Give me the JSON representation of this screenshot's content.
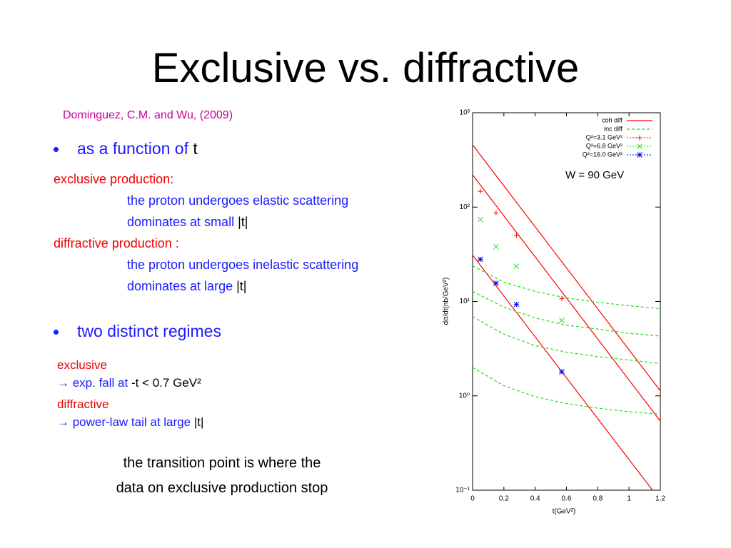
{
  "title": "Exclusive vs. diffractive",
  "citation": "Dominguez, C.M. and Wu, (2009)",
  "bullet1": {
    "text": "as a function of",
    "symbol": "t"
  },
  "exclusive_block": {
    "label": "exclusive production:",
    "line1": "the proton undergoes elastic scattering",
    "line2": "dominates at small",
    "symbol": "|t|"
  },
  "diffractive_block": {
    "label": "diffractive production :",
    "line1": "the proton undergoes inelastic scattering",
    "line2": "dominates at large",
    "symbol": "|t|"
  },
  "bullet2": "two distinct regimes",
  "regimes": {
    "exclusive": "exclusive",
    "exclusive_note": "→ exp. fall at",
    "exclusive_cut": "-t < 0.7 GeV²",
    "diffractive": "diffractive",
    "diffractive_note": "→ power-law tail at large",
    "diffractive_symbol": "|t|"
  },
  "conclusion": [
    "the transition point is where the",
    "data on exclusive production stop"
  ],
  "chart_data": {
    "type": "line",
    "yscale": "log",
    "xlabel": "t(GeV²)",
    "ylabel": "dσ/dt(nb/GeV²)",
    "annotation": "W = 90 GeV",
    "xlim": [
      0,
      1.2
    ],
    "xticks": [
      0,
      0.2,
      0.4,
      0.6,
      0.8,
      1,
      1.2
    ],
    "ylim": [
      0.1,
      1000
    ],
    "yticks": [
      {
        "value": 0.1,
        "label": "10⁻¹"
      },
      {
        "value": 1,
        "label": "10⁰"
      },
      {
        "value": 10,
        "label": "10¹"
      },
      {
        "value": 100,
        "label": "10²"
      },
      {
        "value": 1000,
        "label": "10³"
      }
    ],
    "series": [
      {
        "name": "coh diff",
        "color": "#ff0000",
        "style": "solid",
        "x": [
          0,
          1.2
        ],
        "values": [
          457,
          1.13
        ]
      },
      {
        "color": "#ff0000",
        "style": "solid",
        "x": [
          0,
          1.2
        ],
        "values": [
          220,
          0.54
        ]
      },
      {
        "color": "#ff0000",
        "style": "solid",
        "x": [
          0,
          1.15
        ],
        "values": [
          31,
          0.1
        ]
      },
      {
        "name": "inc diff",
        "color": "#22dd22",
        "style": "dashed",
        "x": [
          0,
          0.2,
          0.4,
          0.6,
          0.8,
          1,
          1.2
        ],
        "values": [
          23.9,
          16.0,
          12.8,
          10.9,
          9.8,
          9.0,
          8.4
        ]
      },
      {
        "color": "#22dd22",
        "style": "dashed",
        "x": [
          0,
          0.2,
          0.4,
          0.6,
          0.8,
          1,
          1.2
        ],
        "values": [
          12.8,
          8.7,
          6.7,
          5.6,
          5.1,
          4.6,
          4.3
        ]
      },
      {
        "color": "#22dd22",
        "style": "dashed",
        "x": [
          0,
          0.2,
          0.4,
          0.6,
          0.8,
          1,
          1.2
        ],
        "values": [
          6.9,
          4.5,
          3.4,
          2.9,
          2.6,
          2.4,
          2.2
        ]
      },
      {
        "color": "#22dd22",
        "style": "dashed",
        "x": [
          0,
          0.2,
          0.4,
          0.6,
          0.8,
          1,
          1.2
        ],
        "values": [
          2.0,
          1.28,
          0.98,
          0.83,
          0.74,
          0.68,
          0.64
        ]
      },
      {
        "name": "Q²=3.1 GeV²",
        "color": "#ff0000",
        "style": "points",
        "marker": "plus",
        "x": [
          0.05,
          0.15,
          0.28,
          0.57
        ],
        "values": [
          147,
          87,
          50,
          10.7
        ]
      },
      {
        "name": "Q²=6.8 GeV²",
        "color": "#22dd22",
        "style": "points",
        "marker": "cross",
        "x": [
          0.05,
          0.15,
          0.28,
          0.57
        ],
        "values": [
          74,
          38,
          23.6,
          6.3
        ]
      },
      {
        "name": "Q²=16.0 GeV²",
        "color": "#0000ff",
        "style": "points",
        "marker": "star",
        "x": [
          0.05,
          0.15,
          0.28,
          0.57
        ],
        "values": [
          28,
          15.6,
          9.3,
          1.8
        ]
      }
    ]
  }
}
